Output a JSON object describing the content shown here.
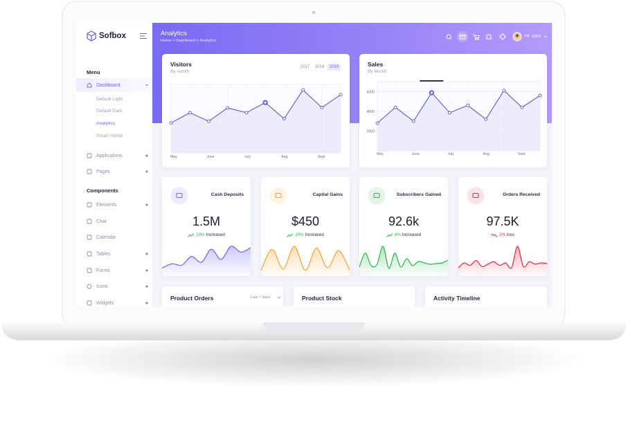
{
  "brand": "Sofbox",
  "sidebar": {
    "menu_heading": "Menu",
    "dashboard": {
      "label": "Dashboard",
      "children": [
        "Default Light",
        "Default Dark",
        "Analytics",
        "Smart Home"
      ]
    },
    "items": [
      "Applications",
      "Pages"
    ],
    "components_heading": "Components",
    "components": [
      "Elements",
      "Chat",
      "Calendar",
      "Tables",
      "Forms",
      "Icons",
      "Widgets"
    ]
  },
  "header": {
    "title": "Analytics",
    "breadcrumb": "Home > Dashboard > Analytics",
    "user": "Hi' John"
  },
  "visitors": {
    "title": "Visitors",
    "subtitle": "By month",
    "years": [
      "2017",
      "2018",
      "2019"
    ],
    "categories": [
      "May",
      null,
      "June",
      null,
      "July",
      null,
      "Aug",
      null,
      "Sept",
      null
    ],
    "values": [
      3500,
      4700,
      3700,
      5250,
      4700,
      5878,
      4000,
      7350,
      5300,
      6800
    ],
    "ylim": [
      0,
      8000
    ],
    "color": "#5b5bd6"
  },
  "sales": {
    "title": "Sales",
    "subtitle": "By Month",
    "categories": [
      "May",
      null,
      "June",
      null,
      "July",
      null,
      "Aug",
      null,
      "Sept",
      null
    ],
    "values": [
      2800,
      4400,
      3000,
      5878,
      3850,
      4600,
      3200,
      6100,
      4400,
      5600
    ],
    "ylim": [
      0,
      7000
    ],
    "yticks": [
      2000,
      4000,
      6000
    ],
    "color": "#5b5bd6"
  },
  "stats": [
    {
      "label": "Cash Deposits",
      "value": "1.5M",
      "change": "10%",
      "trend": "Increased",
      "direction": "up",
      "color": "#6c63ff",
      "trend_color": "#27b345",
      "sparkline": [
        8,
        14,
        12,
        24,
        16,
        34,
        20,
        38,
        30,
        36
      ]
    },
    {
      "label": "Capital Gains",
      "value": "$450",
      "change": "20%",
      "trend": "Increased",
      "direction": "up",
      "color": "#f7a02b",
      "trend_color": "#27b345",
      "sparkline": [
        6,
        40,
        8,
        45,
        6,
        42,
        10,
        38,
        6
      ]
    },
    {
      "label": "Subscribers Gained",
      "value": "92.6k",
      "change": "4%",
      "trend": "Increased",
      "direction": "up",
      "color": "#27b345",
      "trend_color": "#27b345",
      "sparkline": [
        10,
        30,
        12,
        14,
        40,
        8,
        30,
        10,
        22,
        12,
        18,
        16,
        14,
        15,
        16,
        20
      ]
    },
    {
      "label": "Orders Received",
      "value": "97.5K",
      "change": "2%",
      "trend": "loss",
      "direction": "down",
      "color": "#e5243f",
      "trend_color": "#e5243f",
      "sparkline": [
        10,
        18,
        14,
        22,
        12,
        16,
        20,
        14,
        18,
        10,
        45,
        12,
        20,
        16,
        18,
        17
      ]
    }
  ],
  "bottom": {
    "product_orders": "Product Orders",
    "range": "Last 7 days",
    "product_stock": "Product Stock",
    "activity": "Activity Timeline"
  }
}
